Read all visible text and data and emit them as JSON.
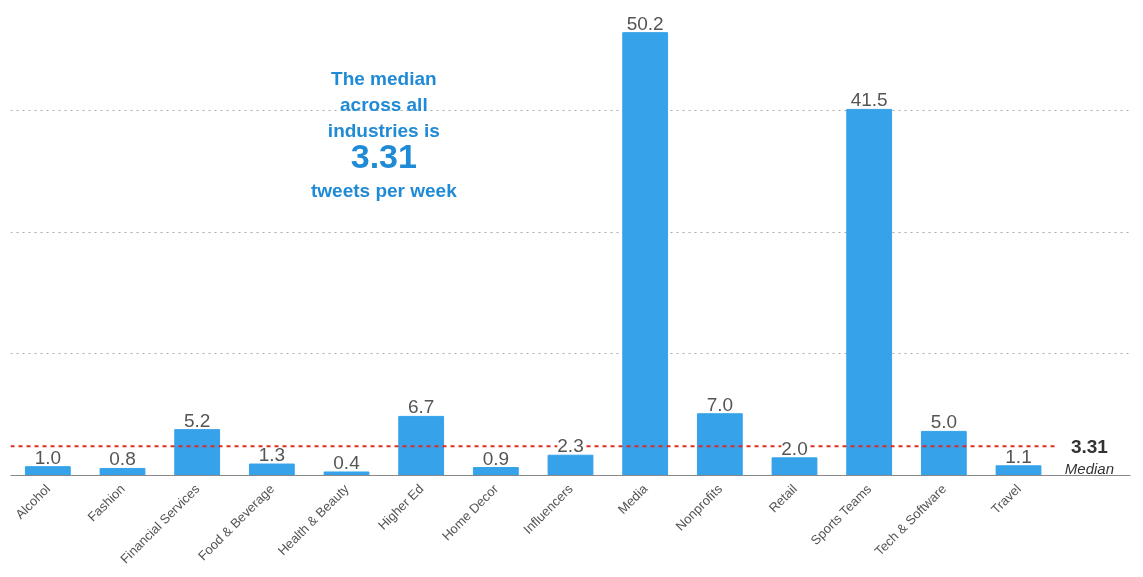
{
  "chart_data": {
    "type": "bar",
    "categories": [
      "Alcohol",
      "Fashion",
      "Financial Services",
      "Food & Beverage",
      "Health & Beauty",
      "Higher Ed",
      "Home Decor",
      "Influencers",
      "Media",
      "Nonprofits",
      "Retail",
      "Sports Teams",
      "Tech & Software",
      "Travel"
    ],
    "values": [
      1.0,
      0.8,
      5.2,
      1.3,
      0.4,
      6.7,
      0.9,
      2.3,
      50.2,
      7.0,
      2.0,
      41.5,
      5.0,
      1.1
    ],
    "value_labels": [
      "1.0",
      "0.8",
      "5.2",
      "1.3",
      "0.4",
      "6.7",
      "0.9",
      "2.3",
      "50.2",
      "7.0",
      "2.0",
      "41.5",
      "5.0",
      "1.1"
    ],
    "color": "#35a2e9",
    "yticks": [
      {
        "value": 13.8,
        "label": null
      },
      {
        "value": 27.6,
        "label": null
      },
      {
        "value": 41.4,
        "label": null
      }
    ],
    "grid": "y",
    "tick_labels": "x",
    "ref_lines": [
      {
        "axis": "y",
        "value": 3.31,
        "label": "3.31\nMedian",
        "color": "#e02b20",
        "line_style": "dotted"
      }
    ],
    "annotations": [
      "The median\nacross all\nindustries is\n3.31\ntweets per week"
    ]
  }
}
